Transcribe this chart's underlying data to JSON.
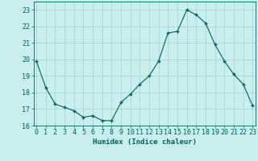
{
  "x": [
    0,
    1,
    2,
    3,
    4,
    5,
    6,
    7,
    8,
    9,
    10,
    11,
    12,
    13,
    14,
    15,
    16,
    17,
    18,
    19,
    20,
    21,
    22,
    23
  ],
  "y": [
    19.9,
    18.3,
    17.3,
    17.1,
    16.9,
    16.5,
    16.6,
    16.3,
    16.3,
    17.4,
    17.9,
    18.5,
    19.0,
    19.9,
    21.6,
    21.7,
    23.0,
    22.7,
    22.2,
    20.9,
    19.9,
    19.1,
    18.5,
    17.2
  ],
  "line_color": "#006060",
  "marker": "+",
  "marker_size": 3.5,
  "bg_color": "#c8eeee",
  "grid_color": "#a0d0d0",
  "xlabel": "Humidex (Indice chaleur)",
  "ylim": [
    16,
    23.5
  ],
  "yticks": [
    16,
    17,
    18,
    19,
    20,
    21,
    22,
    23
  ],
  "xticks": [
    0,
    1,
    2,
    3,
    4,
    5,
    6,
    7,
    8,
    9,
    10,
    11,
    12,
    13,
    14,
    15,
    16,
    17,
    18,
    19,
    20,
    21,
    22,
    23
  ],
  "xlabel_fontsize": 6.5,
  "tick_fontsize": 6.0
}
